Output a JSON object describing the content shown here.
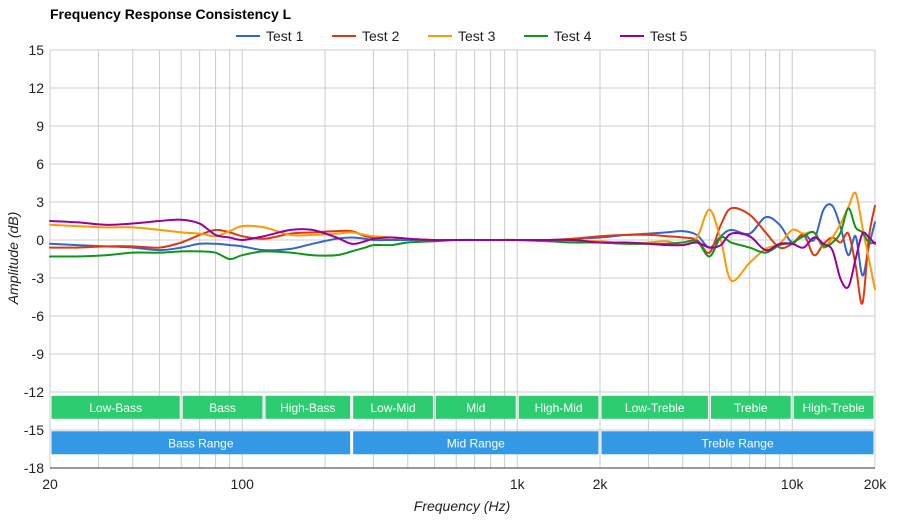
{
  "chart_data": {
    "type": "line",
    "title": "Frequency Response Consistency L",
    "xlabel": "Frequency (Hz)",
    "ylabel": "Amplitude (dB)",
    "x_scale": "log",
    "xlim": [
      20,
      20000
    ],
    "ylim": [
      -18,
      15
    ],
    "y_ticks": [
      15,
      12,
      9,
      6,
      3,
      0,
      -3,
      -6,
      -9,
      -12,
      -15,
      -18
    ],
    "x_ticks": [
      {
        "value": 20,
        "label": "20"
      },
      {
        "value": 100,
        "label": "100"
      },
      {
        "value": 1000,
        "label": "1k"
      },
      {
        "value": 2000,
        "label": "2k"
      },
      {
        "value": 10000,
        "label": "10k"
      },
      {
        "value": 20000,
        "label": "20k"
      }
    ],
    "grid": true,
    "legend_position": "top-center",
    "x": [
      20,
      25,
      32,
      40,
      50,
      60,
      70,
      80,
      90,
      100,
      120,
      150,
      180,
      220,
      250,
      280,
      300,
      350,
      400,
      500,
      600,
      800,
      1000,
      1300,
      1600,
      2000,
      2500,
      3000,
      3500,
      4000,
      4500,
      5000,
      5500,
      6000,
      7000,
      8000,
      9000,
      10000,
      11000,
      12000,
      13000,
      14000,
      15000,
      16000,
      17000,
      18000,
      19000,
      20000
    ],
    "series": [
      {
        "name": "Test 1",
        "color": "#3366cc",
        "values": [
          -0.3,
          -0.4,
          -0.5,
          -0.6,
          -0.8,
          -0.6,
          -0.3,
          -0.3,
          -0.4,
          -0.5,
          -0.8,
          -0.7,
          -0.3,
          0.1,
          0.2,
          0.1,
          0.0,
          0.0,
          0.0,
          0.0,
          0.0,
          0.0,
          0.0,
          0.0,
          0.1,
          0.2,
          0.4,
          0.5,
          0.6,
          0.7,
          0.4,
          -0.6,
          0.3,
          0.8,
          0.5,
          1.8,
          1.2,
          -0.2,
          0.5,
          0.0,
          2.4,
          2.7,
          1.0,
          -1.2,
          0.3,
          -2.8,
          -0.5,
          1.4
        ]
      },
      {
        "name": "Test 2",
        "color": "#dc3912",
        "values": [
          -0.6,
          -0.6,
          -0.5,
          -0.5,
          -0.6,
          -0.2,
          0.4,
          0.8,
          0.6,
          0.3,
          0.1,
          0.5,
          0.6,
          0.7,
          0.7,
          0.3,
          0.2,
          0.2,
          0.1,
          0.0,
          0.0,
          0.0,
          0.0,
          0.0,
          0.1,
          0.3,
          0.4,
          0.4,
          0.3,
          0.2,
          0.0,
          -1.0,
          1.2,
          2.5,
          2.0,
          0.6,
          -0.6,
          -0.3,
          0.4,
          -1.2,
          -0.3,
          0.2,
          -0.2,
          0.5,
          -2.0,
          -5.0,
          0.2,
          2.7
        ]
      },
      {
        "name": "Test 3",
        "color": "#ff9900",
        "values": [
          1.2,
          1.1,
          1.0,
          1.0,
          0.8,
          0.6,
          0.5,
          0.3,
          0.7,
          1.1,
          1.0,
          0.4,
          0.4,
          0.5,
          0.6,
          0.4,
          0.3,
          0.2,
          0.1,
          0.0,
          0.0,
          0.0,
          0.0,
          -0.1,
          -0.1,
          -0.1,
          -0.3,
          -0.2,
          -0.1,
          -0.4,
          0.2,
          2.4,
          0.0,
          -3.2,
          -1.8,
          -0.7,
          -0.3,
          0.8,
          0.5,
          0.6,
          -0.6,
          0.2,
          1.3,
          2.6,
          3.7,
          1.0,
          -1.5,
          -3.9
        ]
      },
      {
        "name": "Test 4",
        "color": "#109618",
        "values": [
          -1.3,
          -1.3,
          -1.2,
          -1.0,
          -1.0,
          -0.9,
          -0.9,
          -1.0,
          -1.5,
          -1.2,
          -0.9,
          -1.0,
          -1.2,
          -1.2,
          -0.9,
          -0.6,
          -0.4,
          -0.4,
          -0.2,
          -0.1,
          0.0,
          0.0,
          0.0,
          -0.1,
          -0.2,
          -0.2,
          -0.3,
          -0.3,
          -0.3,
          -0.2,
          -0.1,
          -1.3,
          0.2,
          -0.2,
          -0.6,
          -1.0,
          -0.4,
          -0.2,
          0.3,
          0.6,
          -0.5,
          -0.2,
          0.6,
          2.5,
          1.0,
          0.6,
          -0.2,
          -0.2
        ]
      },
      {
        "name": "Test 5",
        "color": "#990099",
        "values": [
          1.5,
          1.4,
          1.2,
          1.3,
          1.5,
          1.6,
          1.3,
          0.4,
          0.2,
          0.0,
          0.3,
          0.8,
          0.8,
          0.2,
          -0.3,
          -0.1,
          0.1,
          0.2,
          0.1,
          0.0,
          0.0,
          0.0,
          0.0,
          0.0,
          0.0,
          -0.2,
          -0.2,
          -0.3,
          -0.4,
          -0.4,
          -0.2,
          -0.6,
          -0.4,
          0.5,
          0.3,
          -0.8,
          -0.3,
          -0.3,
          -0.6,
          0.2,
          -0.3,
          -0.8,
          -3.1,
          -3.7,
          -1.5,
          0.5,
          0.2,
          -0.3
        ]
      }
    ],
    "bands": [
      {
        "label": "Low-Bass",
        "from": 20,
        "to": 60,
        "row": 1,
        "color": "#2ecc71"
      },
      {
        "label": "Bass",
        "from": 60,
        "to": 120,
        "row": 1,
        "color": "#2ecc71"
      },
      {
        "label": "High-Bass",
        "from": 120,
        "to": 250,
        "row": 1,
        "color": "#2ecc71"
      },
      {
        "label": "Low-Mid",
        "from": 250,
        "to": 500,
        "row": 1,
        "color": "#2ecc71"
      },
      {
        "label": "Mid",
        "from": 500,
        "to": 1000,
        "row": 1,
        "color": "#2ecc71"
      },
      {
        "label": "High-Mid",
        "from": 1000,
        "to": 2000,
        "row": 1,
        "color": "#2ecc71"
      },
      {
        "label": "Low-Treble",
        "from": 2000,
        "to": 5000,
        "row": 1,
        "color": "#2ecc71"
      },
      {
        "label": "Treble",
        "from": 5000,
        "to": 10000,
        "row": 1,
        "color": "#2ecc71"
      },
      {
        "label": "High-Treble",
        "from": 10000,
        "to": 20000,
        "row": 1,
        "color": "#2ecc71"
      },
      {
        "label": "Bass Range",
        "from": 20,
        "to": 250,
        "row": 2,
        "color": "#3399e6"
      },
      {
        "label": "Mid Range",
        "from": 250,
        "to": 2000,
        "row": 2,
        "color": "#3399e6"
      },
      {
        "label": "Treble Range",
        "from": 2000,
        "to": 20000,
        "row": 2,
        "color": "#3399e6"
      }
    ]
  }
}
